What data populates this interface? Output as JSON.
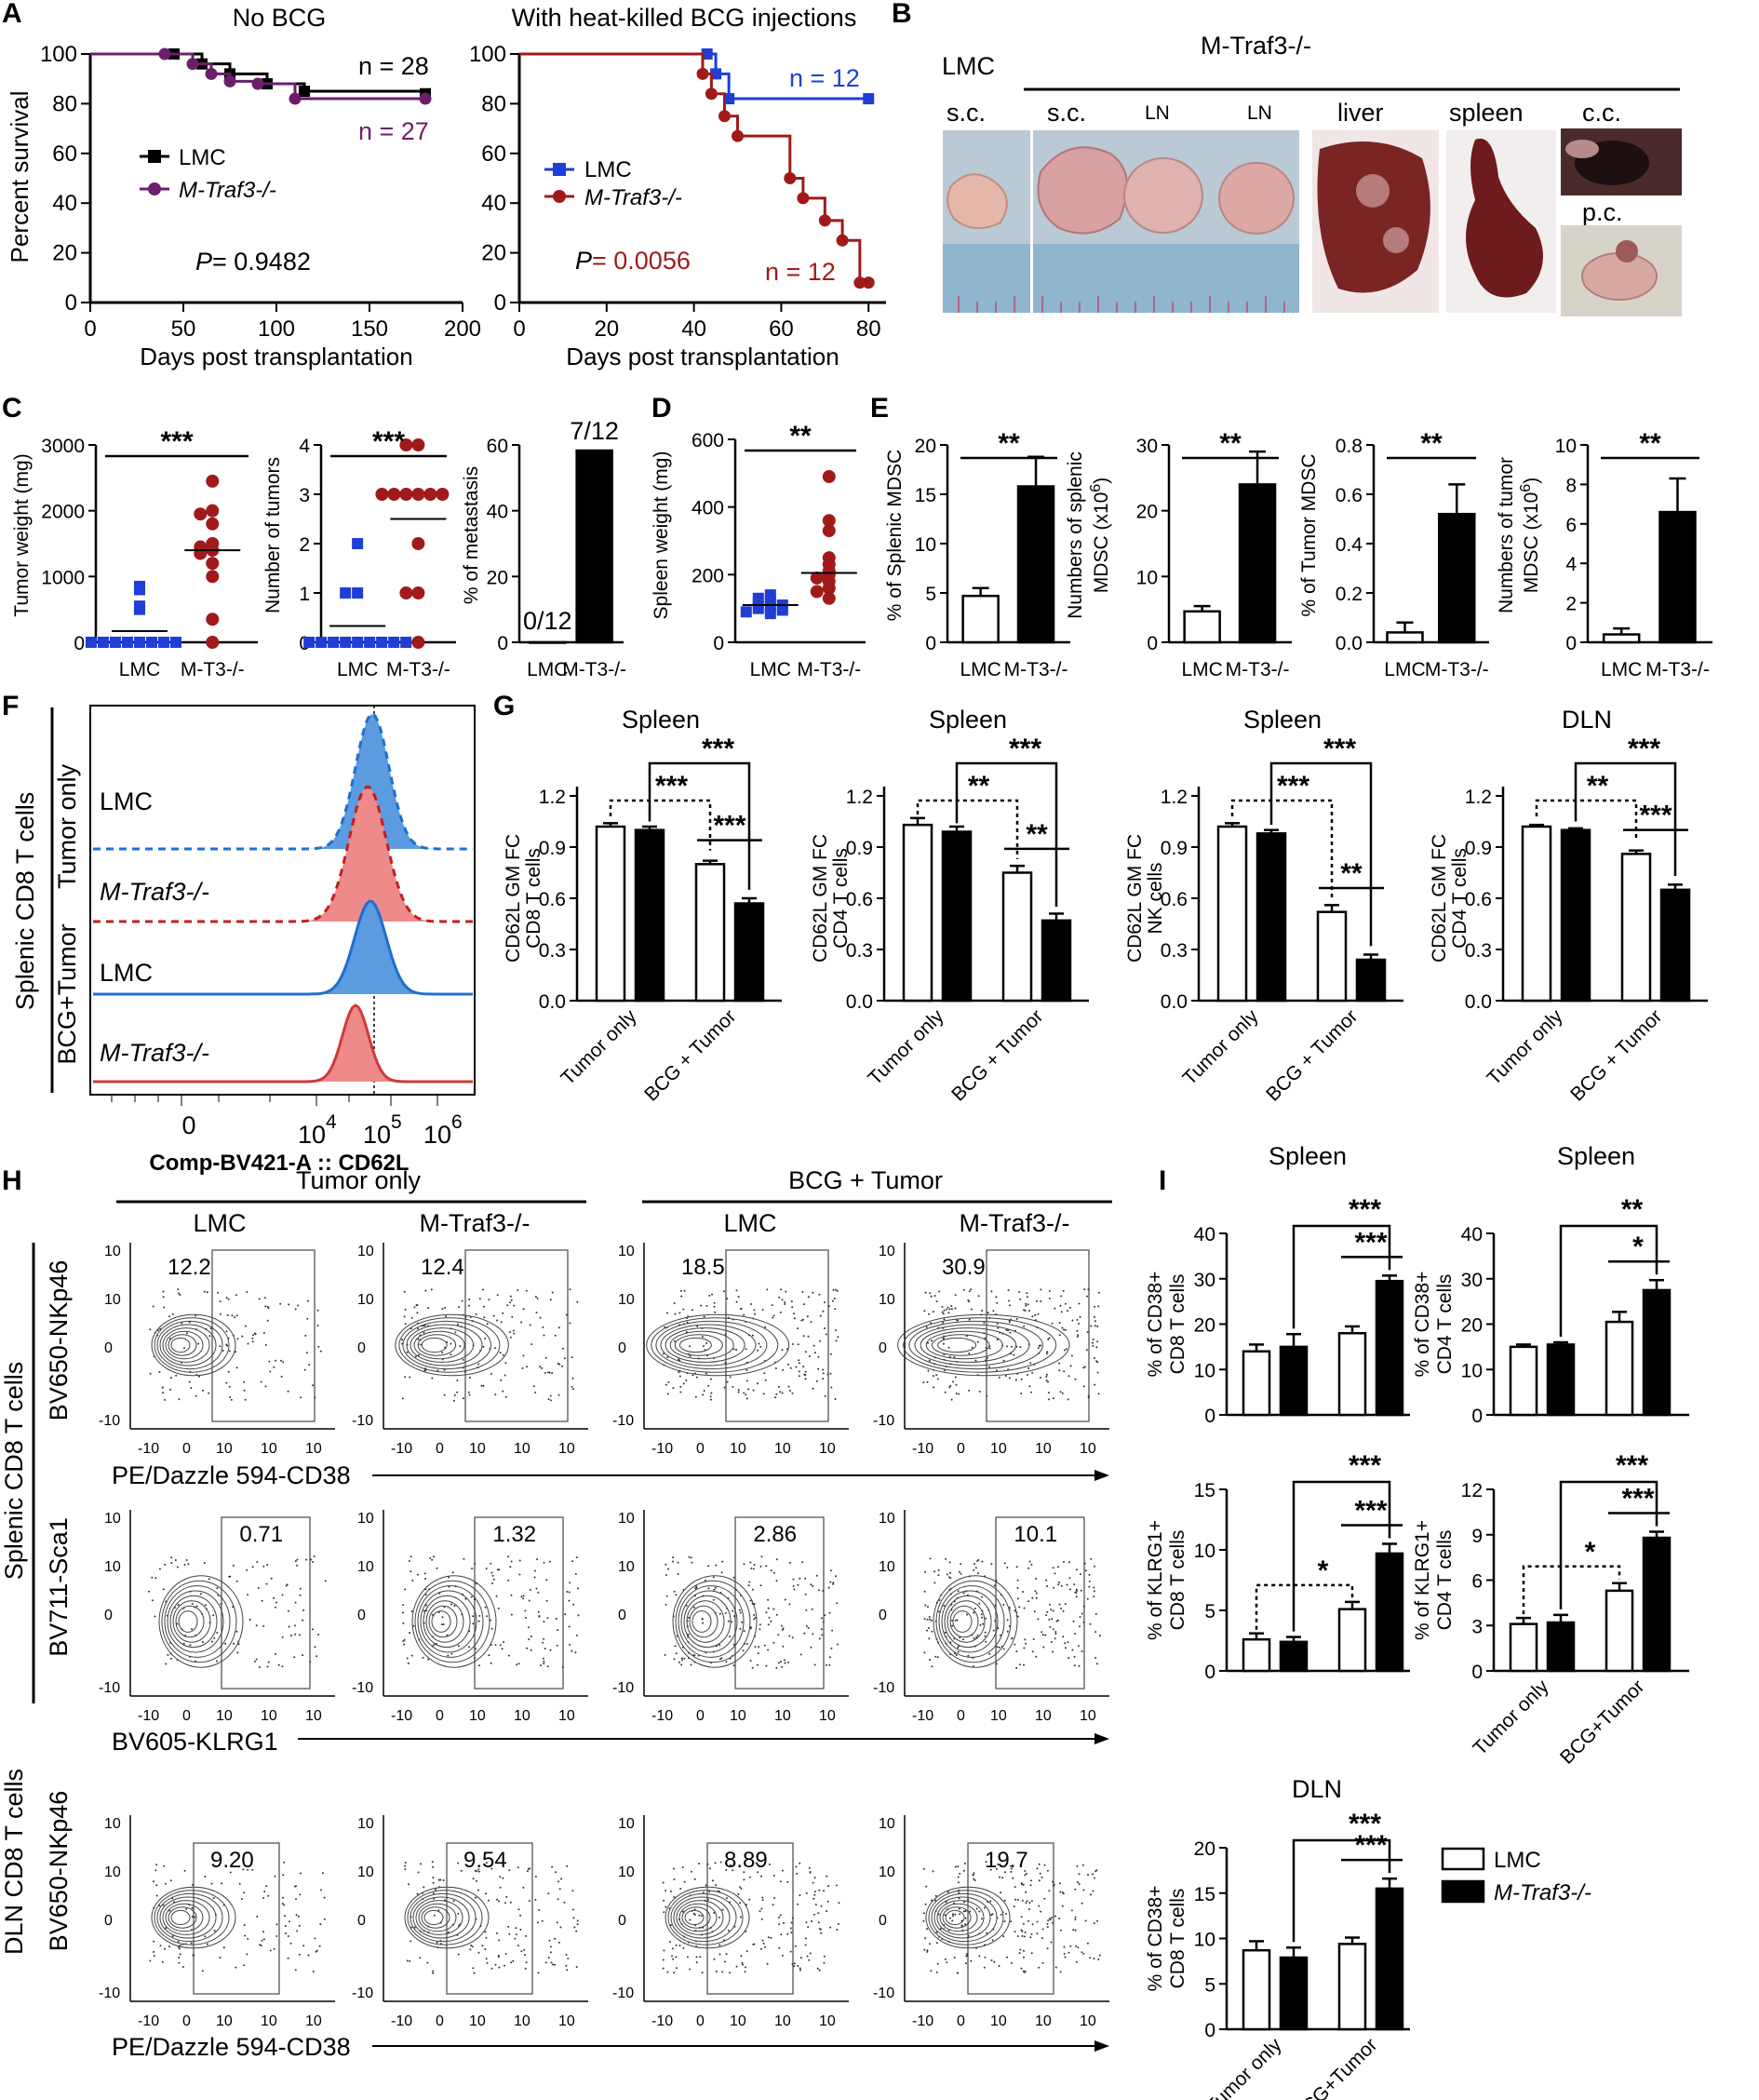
{
  "panel_labels": {
    "A": "A",
    "B": "B",
    "C": "C",
    "D": "D",
    "E": "E",
    "F": "F",
    "G": "G",
    "H": "H",
    "I": "I"
  },
  "colors": {
    "lmc_purple_black": "#000000",
    "mtraf_purple": "#6b1f6b",
    "lmc_blue": "#1f3ed6",
    "mtraf_red": "#a11a1a",
    "hist_blue": "#5b9be0",
    "hist_red": "#ee8a8a",
    "photo_bg": "#b5cfe0"
  },
  "panelA": {
    "left": {
      "title": "No BCG",
      "legend": [
        "LMC",
        "M-Traf3-/-"
      ],
      "n_top": "n = 28",
      "n_bottom": "n = 27",
      "p_label": "P",
      "p_value": " = 0.9482",
      "ylabel": "Percent survival",
      "xlabel": "Days post transplantation",
      "xticks": [
        "0",
        "50",
        "100",
        "150",
        "200"
      ],
      "yticks": [
        "0",
        "20",
        "40",
        "60",
        "80",
        "100"
      ]
    },
    "right": {
      "title": "With heat-killed BCG injections",
      "legend": [
        "LMC",
        "M-Traf3-/-"
      ],
      "n_top": "n = 12",
      "n_bottom": "n = 12",
      "p_label": "P",
      "p_value": " = 0.0056",
      "xlabel": "Days post transplantation",
      "xticks": [
        "0",
        "20",
        "40",
        "60",
        "80"
      ],
      "yticks": [
        "0",
        "20",
        "40",
        "60",
        "80",
        "100"
      ]
    }
  },
  "panelB": {
    "group_lmc": "LMC",
    "group_mtraf": "M-Traf3-/-",
    "sites": [
      "s.c.",
      "s.c.",
      "LN",
      "LN",
      "liver",
      "spleen",
      "c.c.",
      "p.c."
    ]
  },
  "panelC": {
    "c1": {
      "ylabel": "Tumor weight (mg)",
      "yticks": [
        "0",
        "1000",
        "2000",
        "3000"
      ],
      "categories": [
        "LMC",
        "M-T3-/-"
      ],
      "sig": "***"
    },
    "c2": {
      "ylabel": "Number of tumors",
      "yticks": [
        "0",
        "1",
        "2",
        "3",
        "4"
      ],
      "categories": [
        "LMC",
        "M-T3-/-"
      ],
      "sig": "***"
    },
    "c3": {
      "ylabel": "% of metastasis",
      "yticks": [
        "0",
        "20",
        "40",
        "60"
      ],
      "categories": [
        "LMC",
        "M-T3-/-"
      ],
      "lab_lmc": "0/12",
      "lab_mt": "7/12"
    }
  },
  "panelD": {
    "ylabel": "Spleen weight (mg)",
    "yticks": [
      "0",
      "200",
      "400",
      "600"
    ],
    "categories": [
      "LMC",
      "M-T3-/-"
    ],
    "sig": "**"
  },
  "panelE": {
    "e1": {
      "ylabel": "% of Splenic MDSC",
      "yticks": [
        "0",
        "5",
        "10",
        "15",
        "20"
      ],
      "categories": [
        "LMC",
        "M-T3-/-"
      ],
      "sig": "**"
    },
    "e2": {
      "ylabel1": "Numbers of splenic",
      "ylabel2": "MDSC (x10",
      "ylabel_sup": "6",
      "ylabel_end": ")",
      "yticks": [
        "0",
        "10",
        "20",
        "30"
      ],
      "categories": [
        "LMC",
        "M-T3-/-"
      ],
      "sig": "**"
    },
    "e3": {
      "ylabel": "% of Tumor MDSC",
      "yticks": [
        "0.0",
        "0.2",
        "0.4",
        "0.6",
        "0.8"
      ],
      "categories": [
        "LMC",
        "M-T3-/-"
      ],
      "sig": "**"
    },
    "e4": {
      "ylabel1": "Numbers of tumor",
      "ylabel2": "MDSC (x10",
      "ylabel_sup": "6",
      "ylabel_end": ")",
      "yticks": [
        "0",
        "2",
        "4",
        "6",
        "8",
        "10"
      ],
      "categories": [
        "LMC",
        "M-T3-/-"
      ],
      "sig": "**"
    }
  },
  "panelF": {
    "outer_label": "Splenic CD8 T cells",
    "group1": "Tumor only",
    "group2": "BCG+Tumor",
    "rows": [
      "LMC",
      "M-Traf3-/-",
      "LMC",
      "M-Traf3-/-"
    ],
    "xticks": [
      "0",
      "10",
      "4",
      "10",
      "5",
      "10",
      "6"
    ],
    "xlabel": "Comp-BV421-A :: CD62L"
  },
  "panelG": {
    "titles": [
      "Spleen",
      "Spleen",
      "Spleen",
      "DLN"
    ],
    "ylabels": [
      [
        "CD62L GM FC",
        "CD8 T cells"
      ],
      [
        "CD62L GM FC",
        "CD4 T cells"
      ],
      [
        "CD62L GM FC",
        "NK cells"
      ],
      [
        "CD62L GM FC",
        "CD4 T cells"
      ]
    ],
    "yticks": [
      "0.0",
      "0.3",
      "0.6",
      "0.9",
      "1.2"
    ],
    "xcats": [
      "Tumor only",
      "BCG + Tumor"
    ],
    "sig_top": [
      "***",
      "***",
      "***",
      "***"
    ],
    "sig_mid": [
      "***",
      "**",
      "***",
      "**"
    ],
    "sig_low": [
      "***",
      "**",
      "**",
      "***"
    ]
  },
  "panelH": {
    "col_group1": "Tumor only",
    "col_group2": "BCG + Tumor",
    "cols": [
      "LMC",
      "M-Traf3-/-",
      "LMC",
      "M-Traf3-/-"
    ],
    "row_label_spl": "Splenic CD8 T cells",
    "row_label_dln1": "DLN CD8 T cells",
    "ylab_r1": "BV650-NKp46",
    "ylab_r2": "BV711-Sca1",
    "ylab_r3": "BV650-NKp46",
    "xlab_r1": "PE/Dazzle 594-CD38",
    "xlab_r2": "BV605-KLRG1",
    "xlab_r3": "PE/Dazzle 594-CD38",
    "row1_values": [
      "12.2",
      "12.4",
      "18.5",
      "30.9"
    ],
    "row2_values": [
      "0.71",
      "1.32",
      "2.86",
      "10.1"
    ],
    "row3_values": [
      "9.20",
      "9.54",
      "8.89",
      "19.7"
    ]
  },
  "panelI": {
    "titles": [
      "Spleen",
      "Spleen",
      "DLN"
    ],
    "i1": {
      "ylabel1": "% of CD38+",
      "ylabel2": "CD8 T cells",
      "yticks": [
        "0",
        "10",
        "20",
        "30",
        "40"
      ],
      "sig_top": "***",
      "sig_low": "***"
    },
    "i2": {
      "ylabel1": "% of CD38+",
      "ylabel2": "CD4 T cells",
      "yticks": [
        "0",
        "10",
        "20",
        "30",
        "40"
      ],
      "sig_top": "**",
      "sig_low": "*"
    },
    "i3": {
      "ylabel1": "% of KLRG1+",
      "ylabel2": "CD8 T cells",
      "yticks": [
        "0",
        "5",
        "10",
        "15"
      ],
      "sig_top": "***",
      "sig_low": "***",
      "sig_dot": "*"
    },
    "i4": {
      "ylabel1": "% of KLRG1+",
      "ylabel2": "CD4 T cells",
      "yticks": [
        "0",
        "3",
        "6",
        "9",
        "12"
      ],
      "sig_top": "***",
      "sig_low": "***",
      "sig_dot": "*"
    },
    "i5": {
      "ylabel1": "% of CD38+",
      "ylabel2": "CD8 T cells",
      "yticks": [
        "0",
        "5",
        "10",
        "15",
        "20"
      ],
      "sig_top": "***",
      "sig_low": "***"
    },
    "xcats": [
      "Tumor only",
      "BCG+Tumor"
    ],
    "legend": [
      "LMC",
      "M-Traf3-/-"
    ]
  },
  "chart_data": [
    {
      "id": "A-left",
      "type": "line",
      "title": "No BCG",
      "xlabel": "Days post transplantation",
      "ylabel": "Percent survival",
      "xlim": [
        0,
        200
      ],
      "ylim": [
        0,
        100
      ],
      "series": [
        {
          "name": "LMC",
          "x": [
            0,
            45,
            60,
            75,
            95,
            115,
            180
          ],
          "y": [
            100,
            100,
            96,
            92,
            88,
            85,
            84
          ]
        },
        {
          "name": "M-Traf3-/-",
          "x": [
            0,
            40,
            55,
            65,
            75,
            90,
            110,
            180
          ],
          "y": [
            100,
            100,
            96,
            92,
            89,
            88,
            82,
            82
          ]
        }
      ]
    },
    {
      "id": "A-right",
      "type": "line",
      "title": "With heat-killed BCG injections",
      "xlabel": "Days post transplantation",
      "xlim": [
        0,
        84
      ],
      "ylim": [
        0,
        100
      ],
      "series": [
        {
          "name": "LMC",
          "x": [
            0,
            43,
            45,
            48,
            80
          ],
          "y": [
            100,
            100,
            92,
            82,
            82
          ]
        },
        {
          "name": "M-Traf3-/-",
          "x": [
            0,
            42,
            44,
            47,
            50,
            62,
            65,
            70,
            74,
            78,
            80
          ],
          "y": [
            100,
            92,
            84,
            75,
            67,
            50,
            42,
            33,
            25,
            8,
            8
          ]
        }
      ]
    },
    {
      "id": "C1",
      "type": "scatter",
      "ylabel": "Tumor weight (mg)",
      "ylim": [
        0,
        3000
      ],
      "categories": [
        "LMC",
        "M-T3-/-"
      ],
      "groups": [
        {
          "name": "LMC",
          "values": [
            800,
            850,
            550,
            500,
            0,
            0,
            0,
            0,
            0,
            0,
            0,
            0
          ],
          "mean": 170
        },
        {
          "name": "M-T3-/-",
          "values": [
            2450,
            2000,
            1950,
            1800,
            1500,
            1450,
            1400,
            1350,
            1200,
            1000,
            350,
            0
          ],
          "mean": 1400
        }
      ]
    },
    {
      "id": "C2",
      "type": "scatter",
      "ylabel": "Number of tumors",
      "ylim": [
        0,
        4
      ],
      "categories": [
        "LMC",
        "M-T3-/-"
      ],
      "groups": [
        {
          "name": "LMC",
          "values": [
            2,
            1,
            1,
            0,
            0,
            0,
            0,
            0,
            0,
            0,
            0,
            0
          ],
          "mean": 0.33
        },
        {
          "name": "M-T3-/-",
          "values": [
            4,
            4,
            3,
            3,
            3,
            3,
            3,
            3,
            2,
            1,
            1,
            0
          ],
          "mean": 2.5
        }
      ]
    },
    {
      "id": "C3",
      "type": "bar",
      "ylabel": "% of metastasis",
      "ylim": [
        0,
        60
      ],
      "categories": [
        "LMC",
        "M-T3-/-"
      ],
      "values": [
        0,
        58.3
      ],
      "labels": [
        "0/12",
        "7/12"
      ]
    },
    {
      "id": "D",
      "type": "scatter",
      "ylabel": "Spleen weight (mg)",
      "ylim": [
        0,
        600
      ],
      "categories": [
        "LMC",
        "M-T3-/-"
      ],
      "groups": [
        {
          "name": "LMC",
          "values": [
            140,
            130,
            125,
            115,
            110,
            105,
            100,
            95,
            90,
            85
          ],
          "mean": 110
        },
        {
          "name": "M-T3-/-",
          "values": [
            490,
            360,
            330,
            250,
            230,
            210,
            200,
            190,
            180,
            160,
            150,
            130
          ],
          "mean": 205
        }
      ]
    },
    {
      "id": "E1",
      "type": "bar",
      "ylabel": "% of Splenic MDSC",
      "ylim": [
        0,
        20
      ],
      "categories": [
        "LMC",
        "M-T3-/-"
      ],
      "values": [
        4.7,
        15.8
      ],
      "errors": [
        0.8,
        3.0
      ]
    },
    {
      "id": "E2",
      "type": "bar",
      "ylabel": "Numbers of splenic MDSC (x10^6)",
      "ylim": [
        0,
        30
      ],
      "categories": [
        "LMC",
        "M-T3-/-"
      ],
      "values": [
        4.7,
        24
      ],
      "errors": [
        0.8,
        5.0
      ]
    },
    {
      "id": "E3",
      "type": "bar",
      "ylabel": "% of Tumor MDSC",
      "ylim": [
        0,
        0.8
      ],
      "categories": [
        "LMC",
        "M-T3-/-"
      ],
      "values": [
        0.04,
        0.52
      ],
      "errors": [
        0.04,
        0.12
      ]
    },
    {
      "id": "E4",
      "type": "bar",
      "ylabel": "Numbers of tumor MDSC (x10^6)",
      "ylim": [
        0,
        10
      ],
      "categories": [
        "LMC",
        "M-T3-/-"
      ],
      "values": [
        0.4,
        6.6
      ],
      "errors": [
        0.3,
        1.7
      ]
    },
    {
      "id": "G1",
      "type": "bar",
      "title": "Spleen",
      "ylabel": "CD62L GM FC CD8 T cells",
      "ylim": [
        0,
        1.2
      ],
      "categories": [
        "Tumor only",
        "BCG + Tumor"
      ],
      "series": [
        {
          "name": "LMC",
          "values": [
            1.02,
            0.8
          ],
          "errors": [
            0.02,
            0.02
          ]
        },
        {
          "name": "M-Traf3-/-",
          "values": [
            1.0,
            0.57
          ],
          "errors": [
            0.02,
            0.03
          ]
        }
      ]
    },
    {
      "id": "G2",
      "type": "bar",
      "title": "Spleen",
      "ylabel": "CD62L GM FC CD4 T cells",
      "ylim": [
        0,
        1.2
      ],
      "categories": [
        "Tumor only",
        "BCG + Tumor"
      ],
      "series": [
        {
          "name": "LMC",
          "values": [
            1.03,
            0.75
          ],
          "errors": [
            0.04,
            0.04
          ]
        },
        {
          "name": "M-Traf3-/-",
          "values": [
            0.99,
            0.47
          ],
          "errors": [
            0.03,
            0.04
          ]
        }
      ]
    },
    {
      "id": "G3",
      "type": "bar",
      "title": "Spleen",
      "ylabel": "CD62L GM FC NK cells",
      "ylim": [
        0,
        1.2
      ],
      "categories": [
        "Tumor only",
        "BCG + Tumor"
      ],
      "series": [
        {
          "name": "LMC",
          "values": [
            1.02,
            0.52
          ],
          "errors": [
            0.02,
            0.04
          ]
        },
        {
          "name": "M-Traf3-/-",
          "values": [
            0.98,
            0.24
          ],
          "errors": [
            0.02,
            0.03
          ]
        }
      ]
    },
    {
      "id": "G4",
      "type": "bar",
      "title": "DLN",
      "ylabel": "CD62L GM FC CD4 T cells",
      "ylim": [
        0,
        1.2
      ],
      "categories": [
        "Tumor only",
        "BCG + Tumor"
      ],
      "series": [
        {
          "name": "LMC",
          "values": [
            1.02,
            0.86
          ],
          "errors": [
            0.01,
            0.02
          ]
        },
        {
          "name": "M-Traf3-/-",
          "values": [
            1.0,
            0.65
          ],
          "errors": [
            0.01,
            0.03
          ]
        }
      ]
    },
    {
      "id": "I1",
      "type": "bar",
      "title": "Spleen",
      "ylabel": "% of CD38+ CD8 T cells",
      "ylim": [
        0,
        40
      ],
      "categories": [
        "Tumor only",
        "BCG+Tumor"
      ],
      "series": [
        {
          "name": "LMC",
          "values": [
            14,
            18
          ],
          "errors": [
            1.5,
            1.5
          ]
        },
        {
          "name": "M-Traf3-/-",
          "values": [
            15,
            29.5
          ],
          "errors": [
            2.8,
            1.2
          ]
        }
      ]
    },
    {
      "id": "I2",
      "type": "bar",
      "title": "Spleen",
      "ylabel": "% of CD38+ CD4 T cells",
      "ylim": [
        0,
        40
      ],
      "categories": [
        "Tumor only",
        "BCG+Tumor"
      ],
      "series": [
        {
          "name": "LMC",
          "values": [
            15,
            20.5
          ],
          "errors": [
            0.5,
            2.2
          ]
        },
        {
          "name": "M-Traf3-/-",
          "values": [
            15.5,
            27.5
          ],
          "errors": [
            0.5,
            2.2
          ]
        }
      ]
    },
    {
      "id": "I3",
      "type": "bar",
      "ylabel": "% of KLRG1+ CD8 T cells",
      "ylim": [
        0,
        15
      ],
      "categories": [
        "Tumor only",
        "BCG+Tumor"
      ],
      "series": [
        {
          "name": "LMC",
          "values": [
            2.6,
            5.1
          ],
          "errors": [
            0.5,
            0.6
          ]
        },
        {
          "name": "M-Traf3-/-",
          "values": [
            2.4,
            9.7
          ],
          "errors": [
            0.4,
            0.8
          ]
        }
      ]
    },
    {
      "id": "I4",
      "type": "bar",
      "ylabel": "% of KLRG1+ CD4 T cells",
      "ylim": [
        0,
        12
      ],
      "categories": [
        "Tumor only",
        "BCG+Tumor"
      ],
      "series": [
        {
          "name": "LMC",
          "values": [
            3.1,
            5.3
          ],
          "errors": [
            0.4,
            0.5
          ]
        },
        {
          "name": "M-Traf3-/-",
          "values": [
            3.2,
            8.8
          ],
          "errors": [
            0.5,
            0.4
          ]
        }
      ]
    },
    {
      "id": "I5",
      "type": "bar",
      "title": "DLN",
      "ylabel": "% of CD38+ CD8 T cells",
      "ylim": [
        0,
        20
      ],
      "categories": [
        "Tumor only",
        "BCG+Tumor"
      ],
      "series": [
        {
          "name": "LMC",
          "values": [
            8.7,
            9.4
          ],
          "errors": [
            1.0,
            0.7
          ]
        },
        {
          "name": "M-Traf3-/-",
          "values": [
            7.9,
            15.5
          ],
          "errors": [
            1.1,
            1.1
          ]
        }
      ]
    }
  ]
}
